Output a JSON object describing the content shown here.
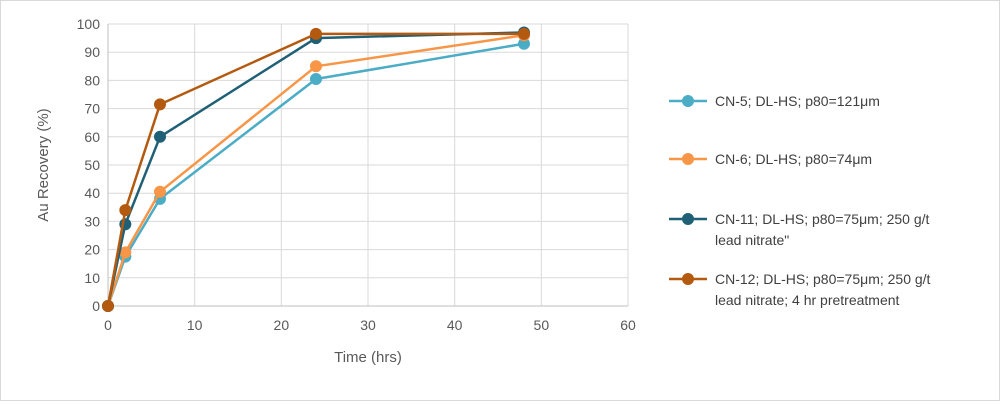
{
  "chart_data": {
    "type": "line",
    "xlabel": "Time (hrs)",
    "ylabel": "Au Recovery (%)",
    "xlim": [
      0,
      60
    ],
    "ylim": [
      0,
      100
    ],
    "xticks": [
      0,
      10,
      20,
      30,
      40,
      50,
      60
    ],
    "yticks": [
      0,
      10,
      20,
      30,
      40,
      50,
      60,
      70,
      80,
      90,
      100
    ],
    "grid": "vertical-and-horizontal",
    "legend_position": "right",
    "series": [
      {
        "name": "CN-5; DL-HS; p80=121μm",
        "name_lines": [
          "CN-5; DL-HS; p80=121μm"
        ],
        "color": "#4bacc6",
        "x": [
          0,
          2,
          6,
          24,
          48
        ],
        "y": [
          0,
          17.5,
          38,
          80.5,
          93
        ]
      },
      {
        "name": "CN-6; DL-HS; p80=74μm",
        "name_lines": [
          "CN-6; DL-HS; p80=74μm"
        ],
        "color": "#f79646",
        "x": [
          0,
          2,
          6,
          24,
          48
        ],
        "y": [
          0,
          19,
          40.5,
          85,
          96
        ]
      },
      {
        "name": "CN-11; DL-HS; p80=75μm; 250 g/t lead nitrate\"",
        "name_lines": [
          "CN-11; DL-HS; p80=75μm; 250 g/t",
          "lead nitrate\""
        ],
        "color": "#1f6076",
        "x": [
          0,
          2,
          6,
          24,
          48
        ],
        "y": [
          0,
          29,
          60,
          95,
          97
        ]
      },
      {
        "name": "CN-12; DL-HS; p80=75μm; 250 g/t lead nitrate; 4 hr pretreatment",
        "name_lines": [
          "CN-12; DL-HS; p80=75μm; 250 g/t",
          "lead nitrate; 4 hr pretreatment"
        ],
        "color": "#b35a10",
        "x": [
          0,
          2,
          6,
          24,
          48
        ],
        "y": [
          0,
          34,
          71.5,
          96.5,
          96.5
        ]
      }
    ]
  }
}
